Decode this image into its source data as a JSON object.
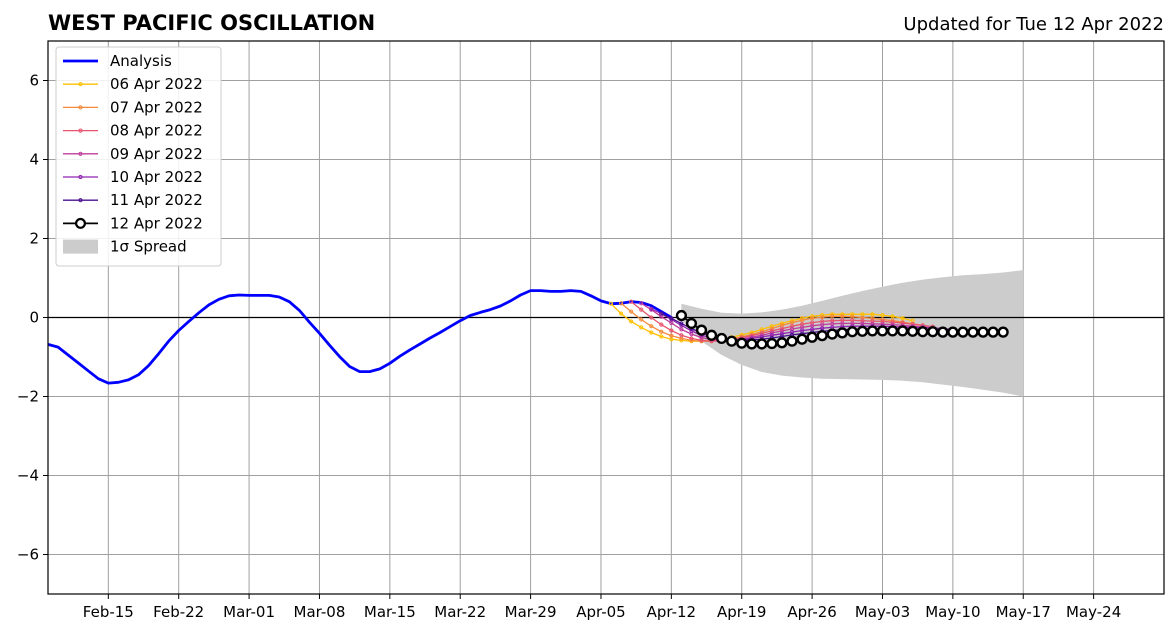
{
  "chart_data": {
    "type": "line",
    "title": "WEST PACIFIC OSCILLATION",
    "subtitle": "Updated for Tue 12 Apr 2022",
    "xlabel": "",
    "ylabel": "",
    "xlim": [
      "2022-02-09",
      "2022-05-31"
    ],
    "ylim": [
      -7,
      7
    ],
    "y_ticks": [
      -6,
      -4,
      -2,
      0,
      2,
      4,
      6
    ],
    "y_tick_labels": [
      "−6",
      "−4",
      "−2",
      "0",
      "2",
      "4",
      "6"
    ],
    "x_ticks": [
      "2022-02-15",
      "2022-02-22",
      "2022-03-01",
      "2022-03-08",
      "2022-03-15",
      "2022-03-22",
      "2022-03-29",
      "2022-04-05",
      "2022-04-12",
      "2022-04-19",
      "2022-04-26",
      "2022-05-03",
      "2022-05-10",
      "2022-05-17",
      "2022-05-24"
    ],
    "x_tick_labels": [
      "Feb-15",
      "Feb-22",
      "Mar-01",
      "Mar-08",
      "Mar-15",
      "Mar-22",
      "Mar-29",
      "Apr-05",
      "Apr-12",
      "Apr-19",
      "Apr-26",
      "May-03",
      "May-10",
      "May-17",
      "May-24"
    ],
    "grid": true,
    "legend_position": "top-left",
    "colors": {
      "analysis": "#0000ff",
      "spread": "#cccccc",
      "zero_line": "#000000",
      "grid": "#a0a0a0"
    },
    "analysis": {
      "name": "Analysis",
      "x": [
        "2022-02-09",
        "2022-02-10",
        "2022-02-11",
        "2022-02-12",
        "2022-02-13",
        "2022-02-14",
        "2022-02-15",
        "2022-02-16",
        "2022-02-17",
        "2022-02-18",
        "2022-02-19",
        "2022-02-20",
        "2022-02-21",
        "2022-02-22",
        "2022-02-23",
        "2022-02-24",
        "2022-02-25",
        "2022-02-26",
        "2022-02-27",
        "2022-02-28",
        "2022-03-01",
        "2022-03-02",
        "2022-03-03",
        "2022-03-04",
        "2022-03-05",
        "2022-03-06",
        "2022-03-07",
        "2022-03-08",
        "2022-03-09",
        "2022-03-10",
        "2022-03-11",
        "2022-03-12",
        "2022-03-13",
        "2022-03-14",
        "2022-03-15",
        "2022-03-16",
        "2022-03-17",
        "2022-03-18",
        "2022-03-19",
        "2022-03-20",
        "2022-03-21",
        "2022-03-22",
        "2022-03-23",
        "2022-03-24",
        "2022-03-25",
        "2022-03-26",
        "2022-03-27",
        "2022-03-28",
        "2022-03-29",
        "2022-03-30",
        "2022-03-31",
        "2022-04-01",
        "2022-04-02",
        "2022-04-03",
        "2022-04-04",
        "2022-04-05",
        "2022-04-06",
        "2022-04-07",
        "2022-04-08",
        "2022-04-09",
        "2022-04-10",
        "2022-04-11",
        "2022-04-12"
      ],
      "y": [
        -0.68,
        -0.75,
        -0.95,
        -1.15,
        -1.35,
        -1.55,
        -1.66,
        -1.64,
        -1.58,
        -1.45,
        -1.22,
        -0.92,
        -0.6,
        -0.33,
        -0.1,
        0.12,
        0.32,
        0.46,
        0.55,
        0.57,
        0.56,
        0.56,
        0.56,
        0.52,
        0.4,
        0.18,
        -0.12,
        -0.4,
        -0.7,
        -0.99,
        -1.24,
        -1.37,
        -1.37,
        -1.3,
        -1.16,
        -0.98,
        -0.82,
        -0.67,
        -0.52,
        -0.38,
        -0.23,
        -0.08,
        0.05,
        0.13,
        0.2,
        0.29,
        0.42,
        0.57,
        0.68,
        0.68,
        0.66,
        0.66,
        0.68,
        0.66,
        0.55,
        0.42,
        0.35,
        0.36,
        0.4,
        0.38,
        0.3,
        0.15,
        0.0
      ]
    },
    "series": [
      {
        "name": "06 Apr 2022",
        "color": "#ffc000",
        "start": "2022-04-06",
        "values": [
          0.35,
          0.1,
          -0.1,
          -0.25,
          -0.38,
          -0.48,
          -0.55,
          -0.58,
          -0.6,
          -0.6,
          -0.58,
          -0.55,
          -0.5,
          -0.44,
          -0.38,
          -0.3,
          -0.22,
          -0.15,
          -0.08,
          -0.02,
          0.03,
          0.06,
          0.08,
          0.08,
          0.08,
          0.08,
          0.08,
          0.06,
          0.03,
          -0.02,
          -0.08
        ]
      },
      {
        "name": "07 Apr 2022",
        "color": "#f48a3a",
        "start": "2022-04-07",
        "values": [
          0.36,
          0.15,
          -0.05,
          -0.22,
          -0.36,
          -0.46,
          -0.53,
          -0.58,
          -0.6,
          -0.6,
          -0.58,
          -0.54,
          -0.49,
          -0.43,
          -0.36,
          -0.28,
          -0.2,
          -0.13,
          -0.07,
          -0.02,
          0.01,
          0.03,
          0.03,
          0.02,
          0.0,
          -0.02,
          -0.05,
          -0.08,
          -0.12,
          -0.16,
          -0.2
        ]
      },
      {
        "name": "08 Apr 2022",
        "color": "#e6546e",
        "start": "2022-04-08",
        "values": [
          0.4,
          0.2,
          0.0,
          -0.18,
          -0.33,
          -0.45,
          -0.53,
          -0.58,
          -0.6,
          -0.59,
          -0.56,
          -0.51,
          -0.46,
          -0.4,
          -0.34,
          -0.28,
          -0.22,
          -0.17,
          -0.13,
          -0.1,
          -0.08,
          -0.07,
          -0.07,
          -0.08,
          -0.09,
          -0.1,
          -0.12,
          -0.14,
          -0.17,
          -0.2,
          -0.23
        ]
      },
      {
        "name": "09 Apr 2022",
        "color": "#c13d9c",
        "start": "2022-04-09",
        "values": [
          0.36,
          0.2,
          0.02,
          -0.14,
          -0.3,
          -0.42,
          -0.51,
          -0.56,
          -0.58,
          -0.58,
          -0.55,
          -0.5,
          -0.45,
          -0.39,
          -0.34,
          -0.29,
          -0.25,
          -0.21,
          -0.18,
          -0.16,
          -0.15,
          -0.15,
          -0.15,
          -0.16,
          -0.17,
          -0.18,
          -0.2,
          -0.22,
          -0.24,
          -0.26,
          -0.28
        ]
      },
      {
        "name": "10 Apr 2022",
        "color": "#9023b1",
        "start": "2022-04-10",
        "values": [
          0.22,
          0.1,
          -0.05,
          -0.2,
          -0.34,
          -0.45,
          -0.52,
          -0.56,
          -0.57,
          -0.56,
          -0.53,
          -0.49,
          -0.45,
          -0.41,
          -0.37,
          -0.33,
          -0.3,
          -0.27,
          -0.25,
          -0.23,
          -0.22,
          -0.22,
          -0.22,
          -0.22,
          -0.23,
          -0.24,
          -0.25,
          -0.26,
          -0.27,
          -0.28,
          -0.3
        ]
      },
      {
        "name": "11 Apr 2022",
        "color": "#4a0f8f",
        "start": "2022-04-11",
        "values": [
          0.1,
          -0.02,
          -0.15,
          -0.28,
          -0.39,
          -0.48,
          -0.54,
          -0.57,
          -0.58,
          -0.57,
          -0.55,
          -0.52,
          -0.48,
          -0.44,
          -0.41,
          -0.38,
          -0.35,
          -0.33,
          -0.31,
          -0.3,
          -0.29,
          -0.29,
          -0.29,
          -0.29,
          -0.29,
          -0.3,
          -0.3,
          -0.31,
          -0.31,
          -0.32,
          -0.33
        ]
      },
      {
        "name": "12 Apr 2022",
        "color": "#000000",
        "start": "2022-04-13",
        "values": [
          0.05,
          -0.15,
          -0.32,
          -0.45,
          -0.53,
          -0.6,
          -0.65,
          -0.67,
          -0.67,
          -0.66,
          -0.64,
          -0.6,
          -0.55,
          -0.5,
          -0.46,
          -0.42,
          -0.39,
          -0.36,
          -0.35,
          -0.34,
          -0.34,
          -0.34,
          -0.34,
          -0.35,
          -0.36,
          -0.36,
          -0.37,
          -0.37,
          -0.37,
          -0.37,
          -0.37,
          -0.37,
          -0.37
        ]
      }
    ],
    "spread": {
      "name": "1σ Spread",
      "start": "2022-04-13",
      "step_days": 2,
      "upper": [
        0.35,
        0.22,
        0.12,
        0.1,
        0.13,
        0.2,
        0.3,
        0.42,
        0.55,
        0.67,
        0.78,
        0.88,
        0.96,
        1.02,
        1.07,
        1.1,
        1.14,
        1.2
      ],
      "lower": [
        -0.05,
        -0.6,
        -0.95,
        -1.2,
        -1.38,
        -1.47,
        -1.52,
        -1.55,
        -1.56,
        -1.57,
        -1.58,
        -1.6,
        -1.64,
        -1.7,
        -1.76,
        -1.83,
        -1.9,
        -2.0
      ]
    }
  }
}
